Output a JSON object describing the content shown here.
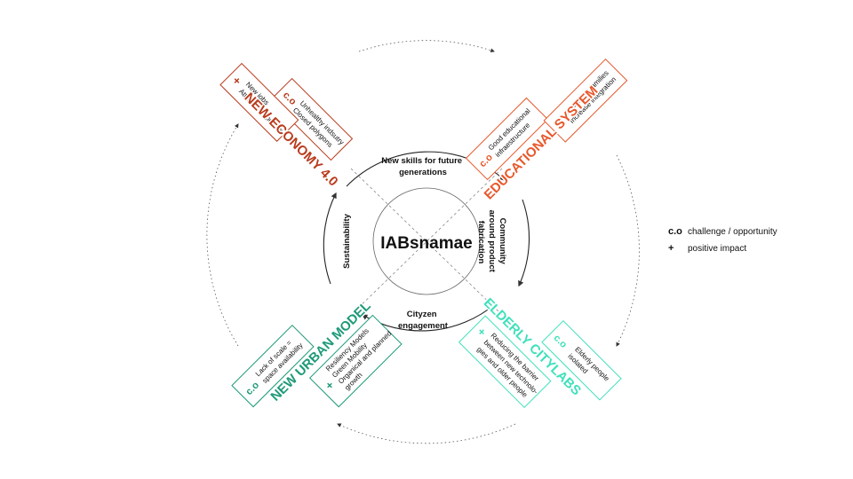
{
  "center": {
    "title": "IABsnamae"
  },
  "inner_ring": {
    "top": [
      "New skills for future",
      "generations"
    ],
    "right": [
      "Community",
      "around product",
      "fabrication"
    ],
    "bottom": [
      "Cityzen",
      "engagement"
    ],
    "left": [
      "Sustainability"
    ]
  },
  "quadrants": {
    "nw": {
      "title": "NEW ECONOMY 4.0",
      "co_tag": "c.o",
      "co_lines": [
        "Unhealthy indsutry",
        "Closed polygons"
      ],
      "plus_tag": "+",
      "plus_lines": [
        "New jobs",
        "Attract new people"
      ]
    },
    "ne": {
      "title": "EDUCATIONAL SYSTEM",
      "co_tag": "c.o",
      "co_lines": [
        "Good educational",
        "infraestructure"
      ],
      "plus_tag": "+",
      "plus_lines": [
        "Attract new families",
        "Increase integration"
      ]
    },
    "sw": {
      "title": "NEW URBAN MODEL",
      "co_tag": "c.o",
      "co_lines": [
        "Lack of scale =",
        "space availability"
      ],
      "plus_tag": "+",
      "plus_lines": [
        "Resiliency Models",
        "Green Mobility",
        "Organical and planned",
        "growth"
      ]
    },
    "se": {
      "title": "ELDERLY CITYLABS",
      "co_tag": "c.o",
      "co_lines": [
        "Elderly people",
        "isolated"
      ],
      "plus_tag": "+",
      "plus_lines": [
        "Reducing the barrier",
        "between new technolo-",
        "gies and older people"
      ]
    }
  },
  "legend": [
    {
      "symbol": "c.o",
      "text": "challenge / opportunity"
    },
    {
      "symbol": "+",
      "text": "positive impact"
    }
  ],
  "colors": {
    "economy": "#b83a1c",
    "education": "#e8572a",
    "urban": "#1e9a78",
    "elderly": "#3fe0bb",
    "line": "#444444"
  }
}
